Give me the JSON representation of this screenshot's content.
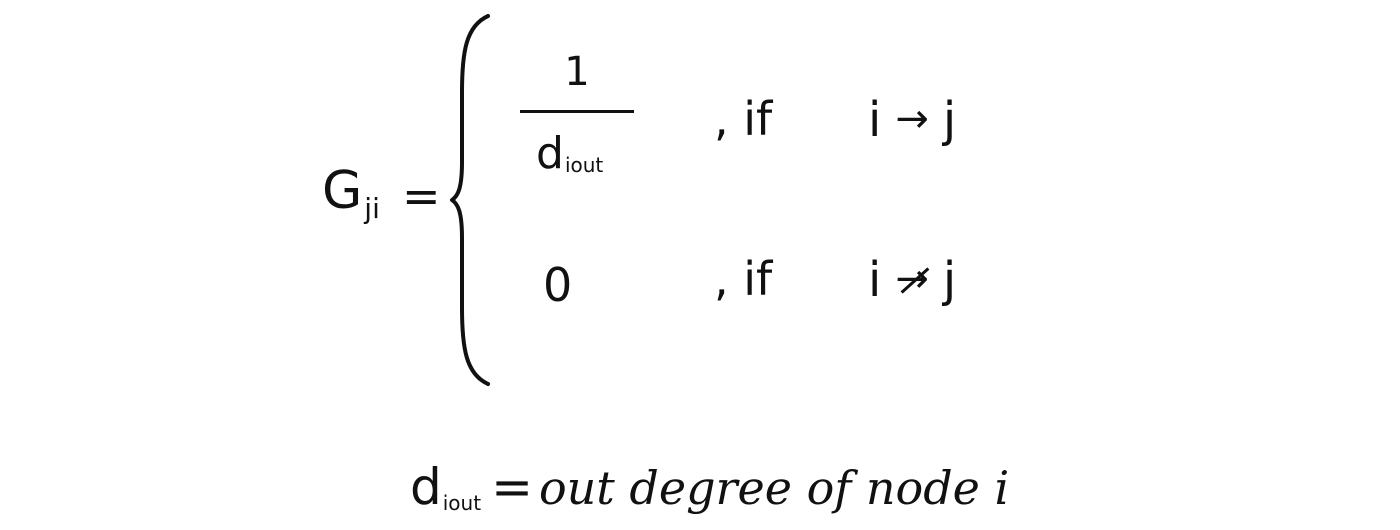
{
  "equation": {
    "lhs": "G",
    "lhs_subscript": "ji",
    "equals": "=",
    "cases": [
      {
        "numerator": "1",
        "denominator": "d",
        "denominator_subscript": "iout",
        "condition_word": ", if",
        "lhs_var": "i",
        "operator": "→",
        "rhs_var": "j"
      },
      {
        "value": "0",
        "condition_word": ", if",
        "lhs_var": "i",
        "operator": "→",
        "operator_negated": true,
        "rhs_var": "j"
      }
    ]
  },
  "definition": {
    "symbol": "d",
    "symbol_subscript": "iout",
    "equals": "=",
    "text": "out degree of node i"
  }
}
